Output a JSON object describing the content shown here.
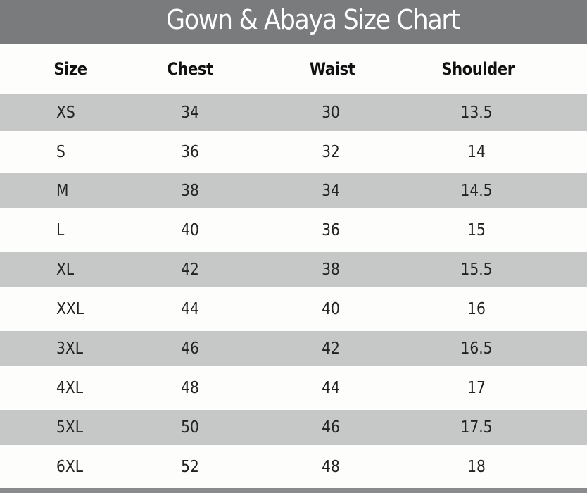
{
  "title": "Gown & Abaya Size Chart",
  "colors": {
    "title_bar": "#7a7b7d",
    "stripe": "#c6c8c8",
    "background": "#fdfdfb"
  },
  "chart_data": {
    "type": "table",
    "title": "Gown & Abaya Size Chart",
    "columns": [
      "Size",
      "Chest",
      "Waist",
      "Shoulder"
    ],
    "rows": [
      [
        "XS",
        "34",
        "30",
        "13.5"
      ],
      [
        "S",
        "36",
        "32",
        "14"
      ],
      [
        "M",
        "38",
        "34",
        "14.5"
      ],
      [
        "L",
        "40",
        "36",
        "15"
      ],
      [
        "XL",
        "42",
        "38",
        "15.5"
      ],
      [
        "XXL",
        "44",
        "40",
        "16"
      ],
      [
        "3XL",
        "46",
        "42",
        "16.5"
      ],
      [
        "4XL",
        "48",
        "44",
        "17"
      ],
      [
        "5XL",
        "50",
        "46",
        "17.5"
      ],
      [
        "6XL",
        "52",
        "48",
        "18"
      ]
    ]
  }
}
